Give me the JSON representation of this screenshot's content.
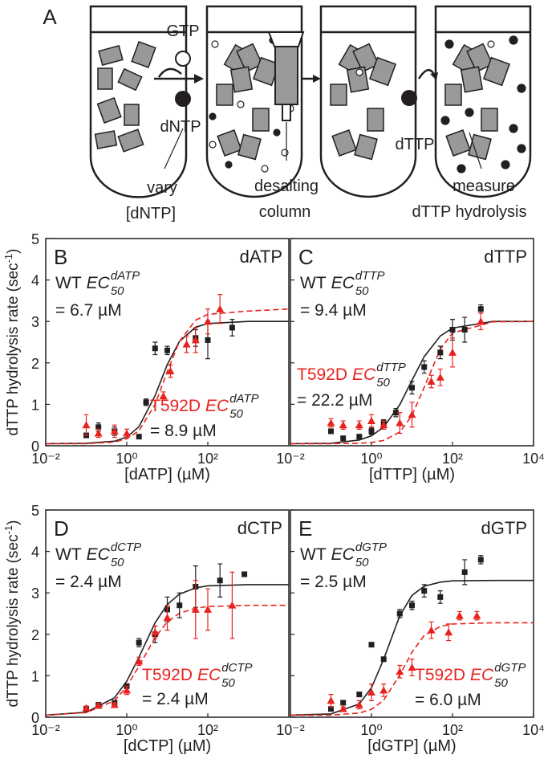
{
  "panel_a": {
    "letter": "A",
    "gtp": "GTP",
    "dntp": "dNTP",
    "vary": "vary",
    "vary_conc": "[dNTP]",
    "desalting": "desalting",
    "column": "column",
    "dttp": "dTTP",
    "measure": "measure",
    "measure_what": "dTTP hydrolysis"
  },
  "chart_data": [
    {
      "type": "scatter",
      "panel": "B",
      "label": "dATP",
      "xlabel": "[dATP] (µM)",
      "ylabel": {
        "text": "dTTP hydrolysis rate (sec",
        "sup": "-1",
        "end": ")"
      },
      "xlog": true,
      "xlim": [
        0.01,
        10000
      ],
      "ylim": [
        0,
        5
      ],
      "xticks": [
        {
          "value": 0.01,
          "label": "10⁻²"
        },
        {
          "value": 1,
          "label": "10⁰"
        },
        {
          "value": 100,
          "label": "10²"
        }
      ],
      "yticks": [
        0,
        1,
        2,
        3,
        4,
        5
      ],
      "annotations": [
        {
          "prefix": "WT",
          "ec": "EC",
          "sup": "dATP",
          "sub": "50",
          "value": "= 6.7 µM",
          "color": "#231f20"
        },
        {
          "prefix": "T592D",
          "ec": "EC",
          "sup": "dATP",
          "sub": "50",
          "value": "= 8.9 µM",
          "color": "#e8231f"
        }
      ],
      "series": [
        {
          "kind": "line",
          "style": "solid",
          "color": "#231f20",
          "x": [
            0.01,
            0.1,
            0.5,
            1,
            2,
            5,
            10,
            20,
            50,
            100,
            1000,
            10000
          ],
          "values": [
            0.05,
            0.06,
            0.11,
            0.21,
            0.46,
            1.21,
            1.96,
            2.52,
            2.86,
            2.95,
            3.0,
            3.0
          ]
        },
        {
          "kind": "line",
          "style": "dashed",
          "color": "#e8231f",
          "x": [
            0.01,
            0.1,
            0.5,
            1,
            2,
            5,
            10,
            20,
            50,
            100,
            1000,
            10000
          ],
          "values": [
            0.05,
            0.05,
            0.09,
            0.17,
            0.36,
            1.0,
            1.79,
            2.52,
            3.03,
            3.17,
            3.25,
            3.3
          ]
        },
        {
          "kind": "points",
          "marker": "square",
          "color": "#231f20",
          "x": [
            0.1,
            0.2,
            0.5,
            2,
            3,
            5,
            10,
            50,
            100,
            400
          ],
          "values": [
            0.25,
            0.45,
            0.35,
            0.22,
            1.05,
            2.35,
            2.3,
            2.6,
            2.55,
            2.85
          ],
          "errors": [
            0.05,
            0.1,
            0.1,
            0.05,
            0.08,
            0.15,
            0.1,
            0.2,
            0.45,
            0.2
          ]
        },
        {
          "kind": "points",
          "marker": "triangle",
          "color": "#e8231f",
          "x": [
            0.1,
            0.2,
            0.5,
            1,
            8,
            12,
            30,
            50,
            100,
            200
          ],
          "values": [
            0.5,
            0.3,
            0.35,
            0.3,
            1.2,
            1.8,
            2.45,
            2.55,
            3.0,
            3.3
          ],
          "errors": [
            0.25,
            0.1,
            0.15,
            0.1,
            0.1,
            0.15,
            0.2,
            0.3,
            0.3,
            0.35
          ]
        }
      ]
    },
    {
      "type": "scatter",
      "panel": "C",
      "label": "dTTP",
      "xlabel": "[dTTP] (µM)",
      "xlog": true,
      "xlim": [
        0.01,
        10000
      ],
      "ylim": [
        0,
        5
      ],
      "xticks": [
        {
          "value": 0.01,
          "label": "10⁻²"
        },
        {
          "value": 1,
          "label": "10⁰"
        },
        {
          "value": 100,
          "label": "10²"
        },
        {
          "value": 10000,
          "label": "10⁴"
        }
      ],
      "yticks": [
        0,
        1,
        2,
        3,
        4,
        5
      ],
      "annotations": [
        {
          "prefix": "WT",
          "ec": "EC",
          "sup": "dTTP",
          "sub": "50",
          "value": "= 9.4 µM",
          "color": "#231f20"
        },
        {
          "prefix": "T592D",
          "ec": "EC",
          "sup": "dTTP",
          "sub": "50",
          "value": "= 22.2 µM",
          "color": "#e8231f"
        }
      ],
      "series": [
        {
          "kind": "line",
          "style": "solid",
          "color": "#231f20",
          "x": [
            0.01,
            0.1,
            0.5,
            1,
            2,
            5,
            10,
            20,
            50,
            100,
            1000,
            10000
          ],
          "values": [
            0.05,
            0.06,
            0.14,
            0.24,
            0.45,
            0.99,
            1.58,
            2.15,
            2.65,
            2.84,
            3.0,
            3.0
          ]
        },
        {
          "kind": "line",
          "style": "dashed",
          "color": "#e8231f",
          "x": [
            0.01,
            0.1,
            0.5,
            1,
            2,
            5,
            10,
            20,
            50,
            100,
            1000,
            10000
          ],
          "values": [
            0.05,
            0.05,
            0.06,
            0.08,
            0.13,
            0.33,
            0.73,
            1.41,
            2.33,
            2.72,
            2.99,
            3.0
          ]
        },
        {
          "kind": "points",
          "marker": "square",
          "color": "#231f20",
          "x": [
            0.1,
            0.2,
            0.5,
            1,
            2,
            4,
            10,
            20,
            50,
            100,
            200,
            500
          ],
          "values": [
            0.35,
            0.18,
            0.22,
            0.35,
            0.55,
            0.8,
            1.4,
            1.9,
            2.25,
            2.8,
            2.8,
            3.3
          ],
          "errors": [
            0.05,
            0.05,
            0.05,
            0.08,
            0.08,
            0.1,
            0.15,
            0.15,
            0.15,
            0.25,
            0.3,
            0.1
          ]
        },
        {
          "kind": "points",
          "marker": "triangle",
          "color": "#e8231f",
          "x": [
            0.1,
            0.2,
            0.5,
            1,
            2,
            5,
            10,
            30,
            50,
            100,
            500
          ],
          "values": [
            0.55,
            0.5,
            0.5,
            0.6,
            0.5,
            0.55,
            0.75,
            1.55,
            1.65,
            2.25,
            3.0
          ],
          "errors": [
            0.1,
            0.1,
            0.1,
            0.15,
            0.1,
            0.25,
            0.3,
            0.15,
            0.2,
            0.35,
            0.2
          ]
        }
      ]
    },
    {
      "type": "scatter",
      "panel": "D",
      "label": "dCTP",
      "xlabel": "[dCTP] (µM)",
      "ylabel": {
        "text": "dTTP hydrolysis rate (sec",
        "sup": "-1",
        "end": ")"
      },
      "xlog": true,
      "xlim": [
        0.01,
        10000
      ],
      "ylim": [
        0,
        5
      ],
      "xticks": [
        {
          "value": 0.01,
          "label": "10⁻²"
        },
        {
          "value": 1,
          "label": "10⁰"
        },
        {
          "value": 100,
          "label": "10²"
        }
      ],
      "yticks": [
        0,
        1,
        2,
        3,
        4,
        5
      ],
      "annotations": [
        {
          "prefix": "WT",
          "ec": "EC",
          "sup": "dCTP",
          "sub": "50",
          "value": "= 2.4 µM",
          "color": "#231f20"
        },
        {
          "prefix": "T592D",
          "ec": "EC",
          "sup": "dCTP",
          "sub": "50",
          "value": "= 2.4 µM",
          "color": "#e8231f"
        }
      ],
      "series": [
        {
          "kind": "line",
          "style": "solid",
          "color": "#231f20",
          "x": [
            0.01,
            0.1,
            0.5,
            1,
            2,
            5,
            10,
            20,
            50,
            100,
            1000,
            10000
          ],
          "values": [
            0.05,
            0.12,
            0.47,
            0.87,
            1.45,
            2.28,
            2.72,
            2.97,
            3.12,
            3.17,
            3.2,
            3.2
          ]
        },
        {
          "kind": "line",
          "style": "dashed",
          "color": "#e8231f",
          "x": [
            0.01,
            0.1,
            0.5,
            1,
            2,
            5,
            10,
            20,
            50,
            100,
            1000,
            10000
          ],
          "values": [
            0.05,
            0.11,
            0.4,
            0.74,
            1.23,
            1.92,
            2.3,
            2.51,
            2.63,
            2.67,
            2.7,
            2.7
          ]
        },
        {
          "kind": "points",
          "marker": "square",
          "color": "#231f20",
          "x": [
            0.1,
            0.2,
            0.5,
            1,
            2,
            5,
            10,
            20,
            50,
            200,
            800
          ],
          "values": [
            0.2,
            0.3,
            0.35,
            0.75,
            1.8,
            2.0,
            2.6,
            2.7,
            3.15,
            3.3,
            3.45
          ],
          "errors": [
            0.05,
            0.05,
            0.05,
            0.05,
            0.1,
            0.2,
            0.3,
            0.3,
            0.5,
            0.4,
            0.05
          ]
        },
        {
          "kind": "points",
          "marker": "triangle",
          "color": "#e8231f",
          "x": [
            0.1,
            0.2,
            0.5,
            1,
            2,
            5,
            10,
            50,
            100,
            400
          ],
          "values": [
            0.22,
            0.28,
            0.3,
            0.65,
            1.35,
            2.05,
            2.4,
            2.6,
            2.6,
            2.7
          ],
          "errors": [
            0.05,
            0.05,
            0.05,
            0.1,
            0.1,
            0.15,
            0.3,
            0.7,
            0.5,
            0.8
          ]
        }
      ]
    },
    {
      "type": "scatter",
      "panel": "E",
      "label": "dGTP",
      "xlabel": "[dGTP] (µM)",
      "xlog": true,
      "xlim": [
        0.01,
        10000
      ],
      "ylim": [
        0,
        5
      ],
      "xticks": [
        {
          "value": 0.01,
          "label": "10⁻²"
        },
        {
          "value": 1,
          "label": "10⁰"
        },
        {
          "value": 100,
          "label": "10²"
        },
        {
          "value": 10000,
          "label": "10⁴"
        }
      ],
      "yticks": [
        0,
        1,
        2,
        3,
        4,
        5
      ],
      "annotations": [
        {
          "prefix": "WT",
          "ec": "EC",
          "sup": "dGTP",
          "sub": "50",
          "value": "= 2.5 µM",
          "color": "#231f20"
        },
        {
          "prefix": "T592D",
          "ec": "EC",
          "sup": "dGTP",
          "sub": "50",
          "value": "= 6.0 µM",
          "color": "#e8231f"
        }
      ],
      "series": [
        {
          "kind": "line",
          "style": "solid",
          "color": "#231f20",
          "x": [
            0.01,
            0.1,
            0.5,
            1,
            2,
            5,
            10,
            20,
            50,
            100,
            1000,
            10000
          ],
          "values": [
            0.05,
            0.08,
            0.32,
            0.71,
            1.4,
            2.45,
            2.94,
            3.16,
            3.26,
            3.29,
            3.3,
            3.3
          ]
        },
        {
          "kind": "line",
          "style": "dashed",
          "color": "#e8231f",
          "x": [
            0.01,
            0.1,
            0.5,
            1,
            2,
            5,
            10,
            20,
            50,
            100,
            1000,
            10000
          ],
          "values": [
            0.05,
            0.05,
            0.1,
            0.19,
            0.41,
            1.02,
            1.57,
            1.97,
            2.19,
            2.25,
            2.28,
            2.28
          ]
        },
        {
          "kind": "points",
          "marker": "square",
          "color": "#231f20",
          "x": [
            0.1,
            0.2,
            0.5,
            1,
            2,
            5,
            10,
            20,
            50,
            200,
            500
          ],
          "values": [
            0.2,
            0.35,
            0.55,
            1.75,
            1.4,
            2.5,
            2.7,
            3.05,
            2.9,
            3.5,
            3.8
          ],
          "errors": [
            0.05,
            0.05,
            0.05,
            0.05,
            0.05,
            0.1,
            0.1,
            0.15,
            0.15,
            0.3,
            0.1
          ]
        },
        {
          "kind": "points",
          "marker": "triangle",
          "color": "#e8231f",
          "x": [
            0.1,
            0.2,
            0.5,
            1,
            2,
            5,
            10,
            30,
            80,
            150,
            400
          ],
          "values": [
            0.4,
            0.2,
            0.3,
            0.6,
            0.65,
            1.1,
            1.2,
            2.1,
            2.05,
            2.45,
            2.45
          ],
          "errors": [
            0.15,
            0.05,
            0.1,
            0.2,
            0.15,
            0.15,
            0.2,
            0.2,
            0.2,
            0.1,
            0.1
          ]
        }
      ]
    }
  ]
}
